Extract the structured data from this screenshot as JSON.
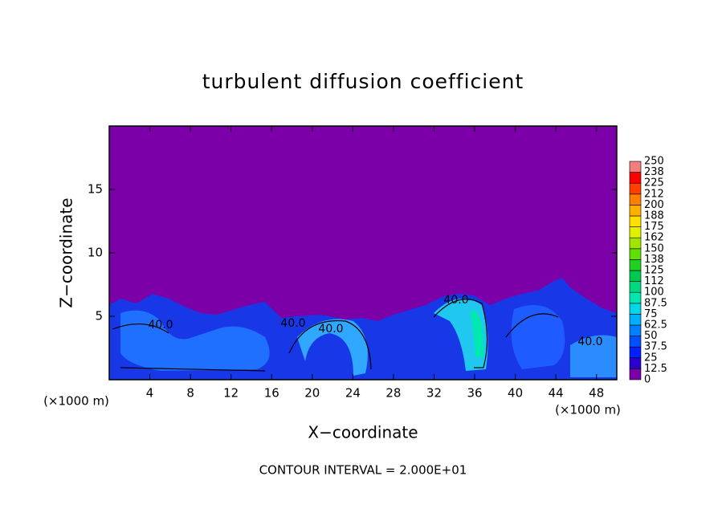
{
  "chart_data": {
    "type": "contour",
    "title": "turbulent diffusion coefficient",
    "x_label": "X−coordinate",
    "y_label": "Z−coordinate",
    "unit_labels": [
      "(×1000 m)",
      "(×1000 m)"
    ],
    "footer": "CONTOUR INTERVAL = 2.000E+01",
    "xlim": [
      0,
      50
    ],
    "ylim": [
      0,
      20
    ],
    "xticks": [
      4,
      8,
      12,
      16,
      20,
      24,
      28,
      32,
      36,
      40,
      44,
      48
    ],
    "yticks": [
      5,
      10,
      15
    ],
    "contour_labels": [
      "40.0",
      "40.0",
      "40.0",
      "40.0",
      "40.0"
    ],
    "colorbar": {
      "levels": [
        0,
        12.5,
        25,
        37.5,
        50,
        62.5,
        75,
        87.5,
        100,
        112,
        125,
        138,
        150,
        162,
        175,
        188,
        200,
        212,
        225,
        238,
        250
      ],
      "colors": [
        "#7b00a8",
        "#2a00d0",
        "#0020ff",
        "#0050ff",
        "#0080ff",
        "#00b0ff",
        "#00d8e8",
        "#00e8b0",
        "#00d880",
        "#00c850",
        "#20d020",
        "#60e000",
        "#a0e600",
        "#e0f000",
        "#ffe000",
        "#ffb000",
        "#ff8000",
        "#ff4000",
        "#ff0000",
        "#f08080"
      ]
    }
  }
}
